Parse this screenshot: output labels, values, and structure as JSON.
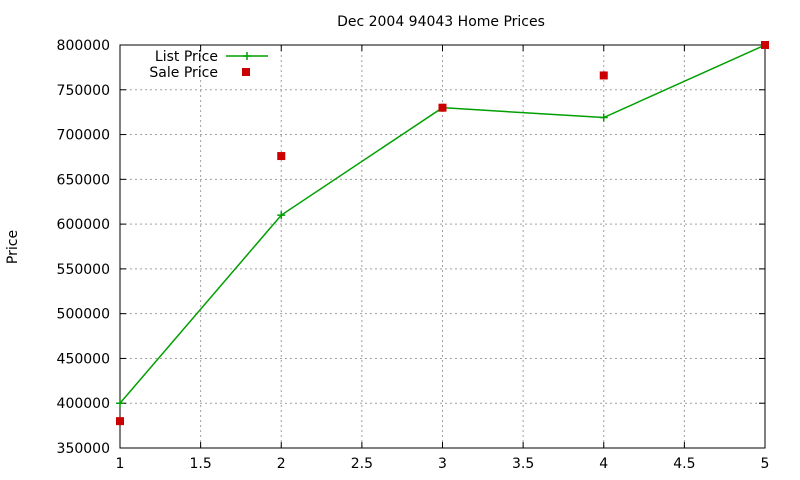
{
  "chart_data": {
    "type": "line",
    "title": "Dec 2004 94043 Home Prices",
    "xlabel": "",
    "ylabel": "Price",
    "xlim": [
      1,
      5
    ],
    "ylim": [
      350000,
      800000
    ],
    "xticks": [
      "1",
      "1.5",
      "2",
      "2.5",
      "3",
      "3.5",
      "4",
      "4.5",
      "5"
    ],
    "yticks": [
      "350000",
      "400000",
      "450000",
      "500000",
      "550000",
      "600000",
      "650000",
      "700000",
      "750000",
      "800000"
    ],
    "grid": true,
    "legend_position": "top-left",
    "series": [
      {
        "name": "List Price",
        "style": "linespoints",
        "marker": "plus",
        "color": "#00a000",
        "x": [
          1,
          2,
          3,
          4,
          5
        ],
        "y": [
          400000,
          610000,
          730000,
          719000,
          800000
        ]
      },
      {
        "name": "Sale Price",
        "style": "points",
        "marker": "square",
        "color": "#cc0000",
        "x": [
          1,
          2,
          3,
          4,
          5
        ],
        "y": [
          380000,
          676000,
          730000,
          766000,
          800000
        ]
      }
    ]
  }
}
